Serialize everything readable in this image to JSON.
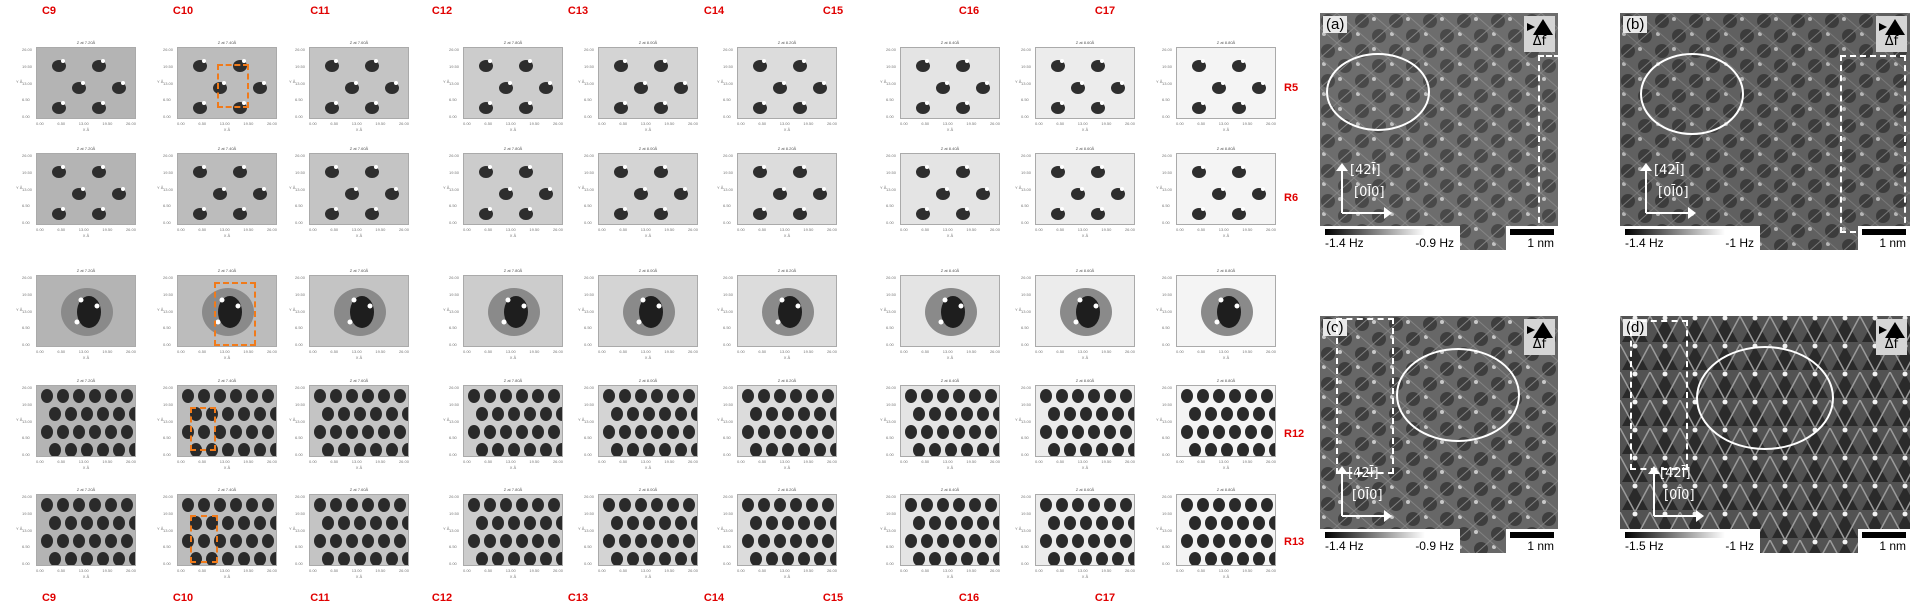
{
  "columns": [
    "C9",
    "C10",
    "C11",
    "C12",
    "C13",
    "C14",
    "C15",
    "C16",
    "C17"
  ],
  "bottom_columns": [
    "C9",
    "C10",
    "C11",
    "C12",
    "C13",
    "C14",
    "C15",
    "C16",
    "C17"
  ],
  "row_labels": {
    "r0": "R5",
    "r1": "R6",
    "r3": "R12",
    "r4": "R13"
  },
  "thumbnail": {
    "titles": [
      "Z at 7.20Å",
      "Z at 7.40Å",
      "Z at 7.60Å",
      "Z at 7.80Å",
      "Z at 8.00Å",
      "Z at 8.20Å",
      "Z at 8.40Å",
      "Z at 8.60Å",
      "Z at 8.80Å"
    ],
    "x_ticks": [
      "0.00",
      "6.50",
      "13.00",
      "19.50",
      "26.00"
    ],
    "y_ticks": [
      "26.00",
      "19.50",
      "13.00",
      "6.50",
      "0.00"
    ],
    "x_name": "X Å",
    "y_name": "Y Å"
  },
  "panels": [
    {
      "label": "(a)",
      "df": "Δf",
      "dir_top": "[42Ī]",
      "dir_bottom": "[0Ī0]",
      "cbar_low": "-1.4 Hz",
      "cbar_high": "-0.9 Hz",
      "scale": "1 nm"
    },
    {
      "label": "(b)",
      "df": "Δf",
      "dir_top": "[42Ī]",
      "dir_bottom": "[0Ī0]",
      "cbar_low": "-1.4 Hz",
      "cbar_high": "-1 Hz",
      "scale": "1 nm"
    },
    {
      "label": "(c)",
      "df": "Δf",
      "dir_top": "[42Ī]",
      "dir_bottom": "[0Ī0]",
      "cbar_low": "-1.4 Hz",
      "cbar_high": "-0.9 Hz",
      "scale": "1 nm"
    },
    {
      "label": "(d)",
      "df": "Δf",
      "dir_top": "[42Ī]",
      "dir_bottom": "[0Ī0]",
      "cbar_low": "-1.5 Hz",
      "cbar_high": "-1 Hz",
      "scale": "1 nm"
    }
  ],
  "colors": {
    "accent_red": "#e00000",
    "selection_orange": "#f07a1a"
  }
}
